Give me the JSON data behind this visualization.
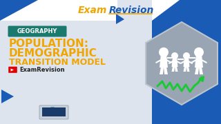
{
  "bg_blue": "#1a5cb5",
  "bg_light": "#dde4ee",
  "white": "#ffffff",
  "orange": "#f0a500",
  "teal": "#1a7a6e",
  "green": "#1dc837",
  "red": "#e00000",
  "dark": "#222222",
  "gray_hex": "#9aa5b4",
  "gray_hex2": "#bcc5cf",
  "title_exam_color": "#f0a500",
  "title_revision_color": "#1a5cb5",
  "geography_label": "GEOGRAPHY",
  "main_line1": "POPULATION:",
  "main_line2": "DEMOGRAPHIC",
  "main_line3": "TRANSITION MODEL",
  "sub_label": "ExamRevision"
}
